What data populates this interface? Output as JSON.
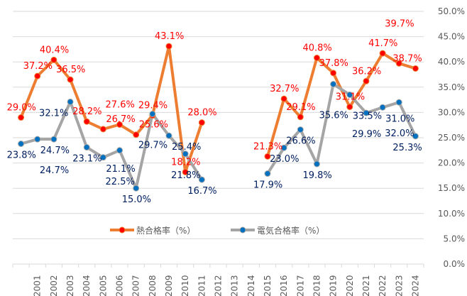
{
  "chart_data": {
    "type": "line",
    "title": "",
    "xlabel": "",
    "ylabel": "",
    "categories": [
      "",
      "2001",
      "2002",
      "2003",
      "2004",
      "2005",
      "2006",
      "2007",
      "2008",
      "2009",
      "2010",
      "2011",
      "2012",
      "2013",
      "2014",
      "2015",
      "2016",
      "2017",
      "2018",
      "2019",
      "2020",
      "2021",
      "2022",
      "2023",
      "2024"
    ],
    "ylim": [
      0,
      50
    ],
    "yticks": [
      "0.0%",
      "5.0%",
      "10.0%",
      "15.0%",
      "20.0%",
      "25.0%",
      "30.0%",
      "35.0%",
      "40.0%",
      "45.0%",
      "50.0%"
    ],
    "y_axis_position": "right",
    "grid": true,
    "legend": "bottom-center",
    "series": [
      {
        "name": "熱合格率（%）",
        "color": "#ED7D31",
        "marker_color": "#FF0000",
        "label_color": "#FF0000",
        "values": [
          29.0,
          37.2,
          40.4,
          36.5,
          28.2,
          26.7,
          27.6,
          25.6,
          29.4,
          43.1,
          18.2,
          28.0,
          null,
          null,
          null,
          21.3,
          32.7,
          29.1,
          40.8,
          37.8,
          31.1,
          36.2,
          41.7,
          39.7,
          38.7
        ]
      },
      {
        "name": "電気合格率（%）",
        "color": "#A5A5A5",
        "marker_color": "#0070C0",
        "label_color": "#002060",
        "values": [
          23.8,
          24.7,
          24.7,
          32.1,
          23.1,
          21.1,
          22.5,
          15.0,
          29.7,
          25.4,
          21.8,
          16.7,
          null,
          null,
          null,
          17.9,
          23.0,
          26.6,
          19.8,
          35.6,
          33.5,
          29.9,
          31.0,
          32.0,
          25.3
        ]
      }
    ]
  }
}
